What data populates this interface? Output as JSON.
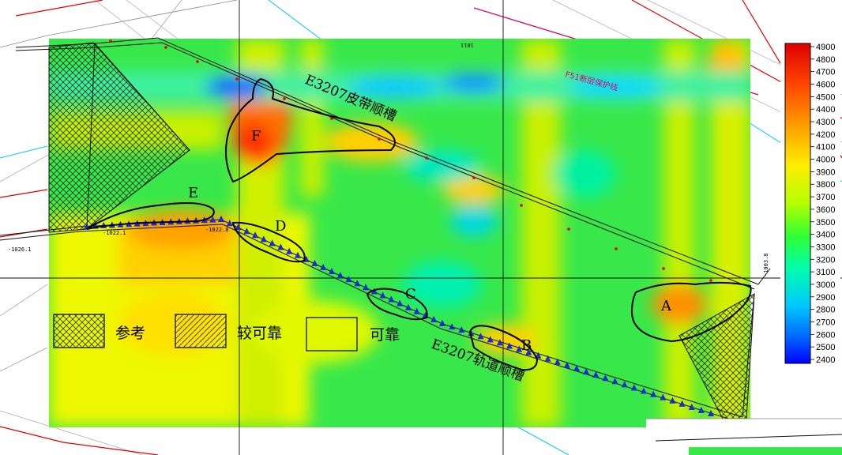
{
  "map": {
    "labels": {
      "belt_trough": "E3207皮带顺槽",
      "rail_trough": "E3207轨道顺槽",
      "fault_line": "F51断层保护线"
    },
    "zones": [
      "A",
      "B",
      "C",
      "D",
      "E",
      "F"
    ],
    "small_labels": {
      "elev_e": "-1022.1",
      "elev_d": "-1022.8",
      "elev_left": "-1026.1",
      "elev_top": "1011",
      "elev_right": "-1003.8"
    }
  },
  "legend": {
    "reference": "参考",
    "fairly_reliable": "较可靠",
    "reliable": "可靠"
  },
  "colorbar": {
    "ticks": [
      "4900",
      "4800",
      "4700",
      "4600",
      "4500",
      "4400",
      "4300",
      "4200",
      "4100",
      "4000",
      "3900",
      "3800",
      "3700",
      "3600",
      "3500",
      "3400",
      "3300",
      "3200",
      "3100",
      "3000",
      "2900",
      "2800",
      "2700",
      "2600",
      "2500",
      "2400"
    ],
    "colors": [
      "#0000ff",
      "#00c8ff",
      "#00ffb4",
      "#00ff32",
      "#b4ff00",
      "#ffff00",
      "#ffb400",
      "#ff5000",
      "#ff0000"
    ]
  }
}
